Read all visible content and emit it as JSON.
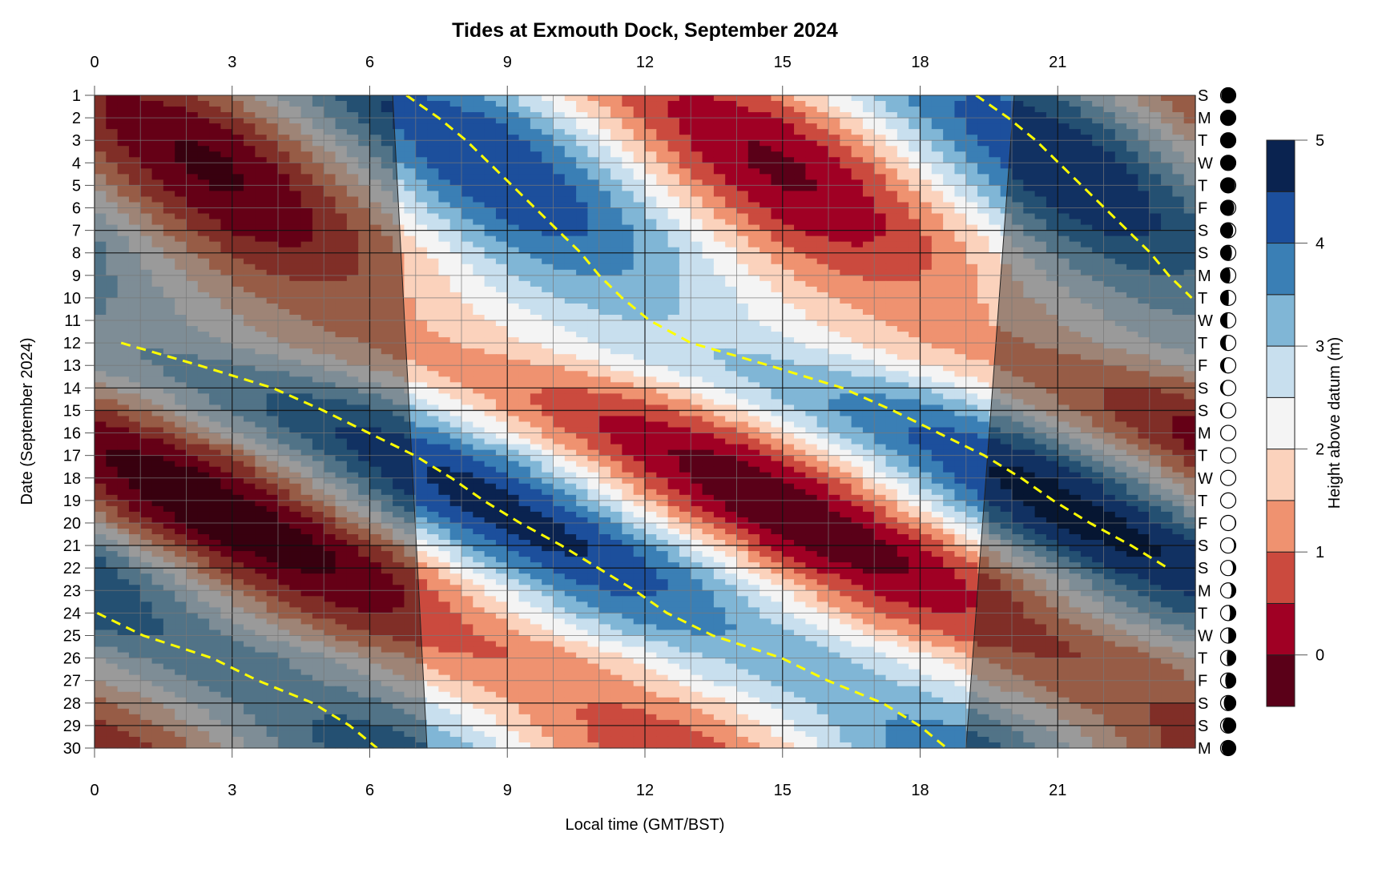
{
  "chart_data": {
    "type": "heatmap",
    "title": "Tides at Exmouth Dock, September 2024",
    "xlabel": "Local time (GMT/BST)",
    "ylabel": "Date (September 2024)",
    "xlim": [
      0,
      24
    ],
    "ylim": [
      1,
      30
    ],
    "x_ticks": [
      0,
      3,
      6,
      9,
      12,
      15,
      18,
      21
    ],
    "x_tick_labels": [
      "0",
      "3",
      "6",
      "9",
      "12",
      "15",
      "18",
      "21"
    ],
    "days": [
      1,
      2,
      3,
      4,
      5,
      6,
      7,
      8,
      9,
      10,
      11,
      12,
      13,
      14,
      15,
      16,
      17,
      18,
      19,
      20,
      21,
      22,
      23,
      24,
      25,
      26,
      27,
      28,
      29,
      30
    ],
    "y_tick_labels": [
      "1",
      "2",
      "3",
      "4",
      "5",
      "6",
      "7",
      "8",
      "9",
      "10",
      "11",
      "12",
      "13",
      "14",
      "15",
      "16",
      "17",
      "18",
      "19",
      "20",
      "21",
      "22",
      "23",
      "24",
      "25",
      "26",
      "27",
      "28",
      "29",
      "30"
    ],
    "weekdays": [
      "S",
      "M",
      "T",
      "W",
      "T",
      "F",
      "S",
      "S",
      "M",
      "T",
      "W",
      "T",
      "F",
      "S",
      "S",
      "M",
      "T",
      "W",
      "T",
      "F",
      "S",
      "S",
      "M",
      "T",
      "W",
      "T",
      "F",
      "S",
      "S",
      "M"
    ],
    "moon_phase": [
      0.932,
      0.966,
      0.0,
      0.034,
      0.068,
      0.102,
      0.135,
      0.169,
      0.203,
      0.237,
      0.271,
      0.305,
      0.339,
      0.373,
      0.406,
      0.44,
      0.474,
      0.508,
      0.542,
      0.576,
      0.61,
      0.643,
      0.677,
      0.711,
      0.745,
      0.779,
      0.813,
      0.847,
      0.88,
      0.914
    ],
    "tide_period_hours": 12.42,
    "high_tide_phase_hours": [
      6.8,
      7.5,
      8.1,
      8.6,
      9.1,
      9.6,
      10.1,
      10.6,
      11.0,
      11.5,
      12.1,
      13.0,
      14.7,
      16.3,
      17.4,
      18.4,
      19.4,
      20.2,
      20.9,
      21.7,
      22.6,
      23.4,
      24.2,
      24.9,
      25.9,
      27.4,
      28.4,
      29.6,
      30.4,
      31.0
    ],
    "high_water_m": [
      4.0,
      4.3,
      4.45,
      4.5,
      4.45,
      4.3,
      4.1,
      3.8,
      3.5,
      3.2,
      3.0,
      2.95,
      3.1,
      3.4,
      3.8,
      4.1,
      4.4,
      4.6,
      4.7,
      4.7,
      4.6,
      4.4,
      4.1,
      3.8,
      3.5,
      3.3,
      3.25,
      3.35,
      3.6,
      3.8
    ],
    "low_water_m": [
      0.5,
      0.2,
      0.0,
      -0.1,
      -0.05,
      0.1,
      0.3,
      0.6,
      0.9,
      1.2,
      1.35,
      1.4,
      1.3,
      1.0,
      0.6,
      0.2,
      -0.1,
      -0.3,
      -0.4,
      -0.4,
      -0.3,
      -0.1,
      0.2,
      0.5,
      0.8,
      1.0,
      1.1,
      1.0,
      0.8,
      0.6
    ],
    "sunrise_hours": [
      [
        1,
        6.5
      ],
      [
        30,
        7.25
      ]
    ],
    "sunset_hours": [
      [
        1,
        20.05
      ],
      [
        30,
        19.0
      ]
    ],
    "weekend_days": [
      7,
      8,
      14,
      15,
      21,
      22,
      28,
      29
    ],
    "night_shade": "#000000",
    "high_tide_line_color": "#ffff00",
    "colorbar": {
      "label": "Height above datum (m)",
      "levels": [
        -0.5,
        0,
        0.5,
        1,
        1.5,
        2,
        2.5,
        3,
        3.5,
        4,
        4.5,
        5
      ],
      "colors": [
        "#5a0018",
        "#a00024",
        "#cb4a3e",
        "#ef9270",
        "#fbd2bc",
        "#f4f4f4",
        "#c8dfee",
        "#80b6d6",
        "#3a7fb5",
        "#1c4f9c",
        "#0a2350"
      ],
      "ticks": [
        0,
        1,
        2,
        3,
        4,
        5
      ],
      "tick_labels": [
        "0",
        "1",
        "2",
        "3",
        "4",
        "5"
      ]
    }
  }
}
